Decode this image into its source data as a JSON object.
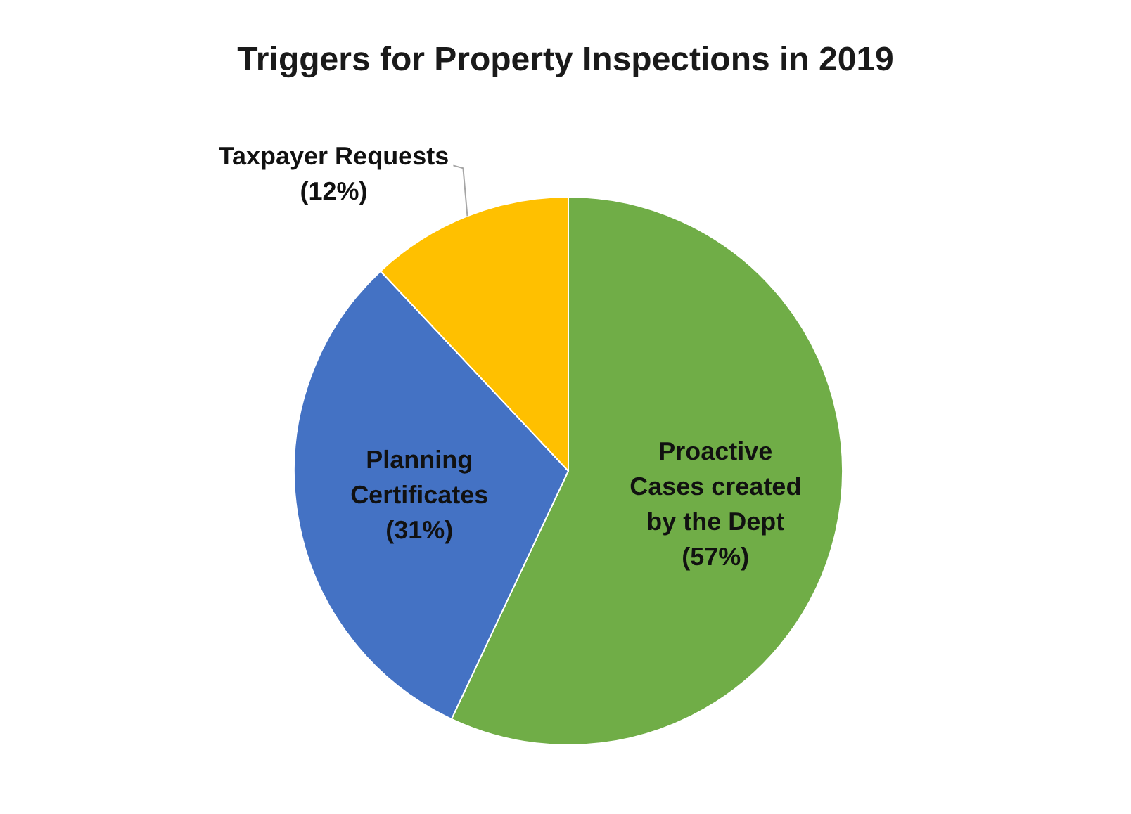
{
  "chart_data": {
    "type": "pie",
    "title": "Triggers for Property Inspections in 2019",
    "categories": [
      "Proactive Cases created by the Dept",
      "Planning Certificates",
      "Taxpayer Requests"
    ],
    "values": [
      57,
      31,
      12
    ],
    "colors": [
      "#70ad47",
      "#4472c4",
      "#ffc000"
    ],
    "value_labels": [
      "(57%)",
      "(31%)",
      "(12%)"
    ],
    "legend": false
  }
}
